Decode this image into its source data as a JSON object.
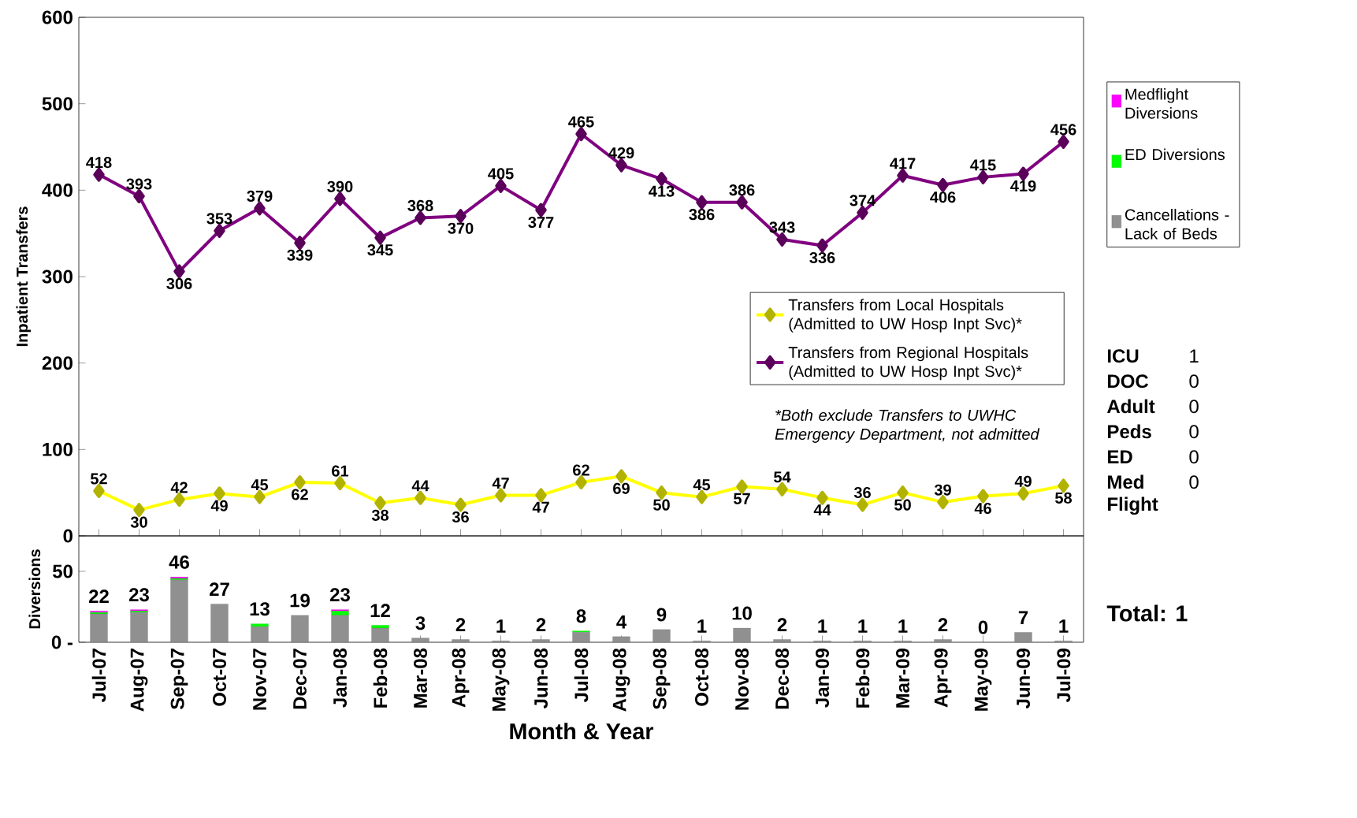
{
  "chart_data": [
    {
      "type": "line",
      "ylabel": "Inpatient Transfers",
      "categories": [
        null,
        null,
        null,
        null,
        null,
        null,
        null,
        null,
        null,
        null,
        null,
        null,
        null,
        null,
        null,
        null,
        null,
        null,
        null,
        null,
        null,
        null,
        null,
        null,
        null
      ],
      "series": [
        {
          "name": "Transfers from Local Hospitals (Admitted to UW Hosp Inpt Svc)*",
          "color": "#ffff00",
          "values": [
            52,
            30,
            42,
            49,
            45,
            62,
            61,
            38,
            44,
            36,
            47,
            47,
            62,
            69,
            50,
            45,
            57,
            54,
            44,
            36,
            50,
            39,
            46,
            49,
            58
          ]
        },
        {
          "name": "Transfers from Regional Hospitals (Admitted to UW Hosp Inpt Svc)*",
          "color": "#800080",
          "values": [
            418,
            393,
            306,
            353,
            379,
            339,
            390,
            345,
            368,
            370,
            405,
            377,
            465,
            429,
            413,
            386,
            386,
            343,
            336,
            374,
            417,
            406,
            415,
            419,
            456
          ]
        }
      ],
      "ylim": [
        0,
        600
      ],
      "yticks": [
        0,
        100,
        200,
        300,
        400,
        500,
        600
      ],
      "marker": "diamond",
      "line_style": "solid",
      "data_labels": true,
      "legend": "center right",
      "tick_labels": "y",
      "annotations": [
        "*Both exclude Transfers to UWHC Emergency Department, not admitted"
      ]
    },
    {
      "type": "bar",
      "stacked": true,
      "xlabel": "Month & Year",
      "ylabel": "Diversions",
      "categories": [
        "Jul-07",
        "Aug-07",
        "Sep-07",
        "Oct-07",
        "Nov-07",
        "Dec-07",
        "Jan-08",
        "Feb-08",
        "Mar-08",
        "Apr-08",
        "May-08",
        "Jun-08",
        "Jul-08",
        "Aug-08",
        "Sep-08",
        "Oct-08",
        "Nov-08",
        "Dec-08",
        "Jan-09",
        "Feb-09",
        "Mar-09",
        "Apr-09",
        "May-09",
        "Jun-09",
        "Jul-09"
      ],
      "series": [
        {
          "name": "Cancellations - Lack of Beds",
          "color": "#909090",
          "values": [
            20,
            21,
            44,
            27,
            11,
            19,
            19,
            10,
            3,
            2,
            1,
            2,
            7,
            4,
            9,
            1,
            10,
            2,
            1,
            1,
            1,
            2,
            0,
            7,
            1
          ]
        },
        {
          "name": "ED Diversions",
          "color": "#00ff00",
          "values": [
            1,
            1,
            1,
            0,
            2,
            0,
            3,
            2,
            0,
            0,
            0,
            0,
            1,
            0,
            0,
            0,
            0,
            0,
            0,
            0,
            0,
            0,
            0,
            0,
            0
          ]
        },
        {
          "name": "Medflight Diversions",
          "color": "#ff00ff",
          "values": [
            1,
            1,
            1,
            0,
            0,
            0,
            1,
            0,
            0,
            0,
            0,
            0,
            0,
            0,
            0,
            0,
            0,
            0,
            0,
            0,
            0,
            0,
            0,
            0,
            0
          ]
        }
      ],
      "totals": [
        "22",
        "23",
        "46",
        "27",
        "13",
        "19",
        "23",
        "12",
        "3",
        "2",
        "1",
        "2",
        "8",
        "4",
        "9",
        "1",
        "10",
        "2",
        "1",
        "1",
        "1",
        "2",
        "0",
        "7",
        "1"
      ],
      "ylim": [
        0,
        75
      ],
      "yticks": [
        {
          "value": 0,
          "label": "0 -"
        },
        50
      ],
      "legend": "right"
    },
    {
      "type": "other",
      "annotations": [
        "ICU",
        "1",
        "DOC",
        "0",
        "Adult",
        "0",
        "Peds",
        "0",
        "ED",
        "0",
        "Med Flight",
        "0",
        "Total:  1"
      ]
    }
  ]
}
